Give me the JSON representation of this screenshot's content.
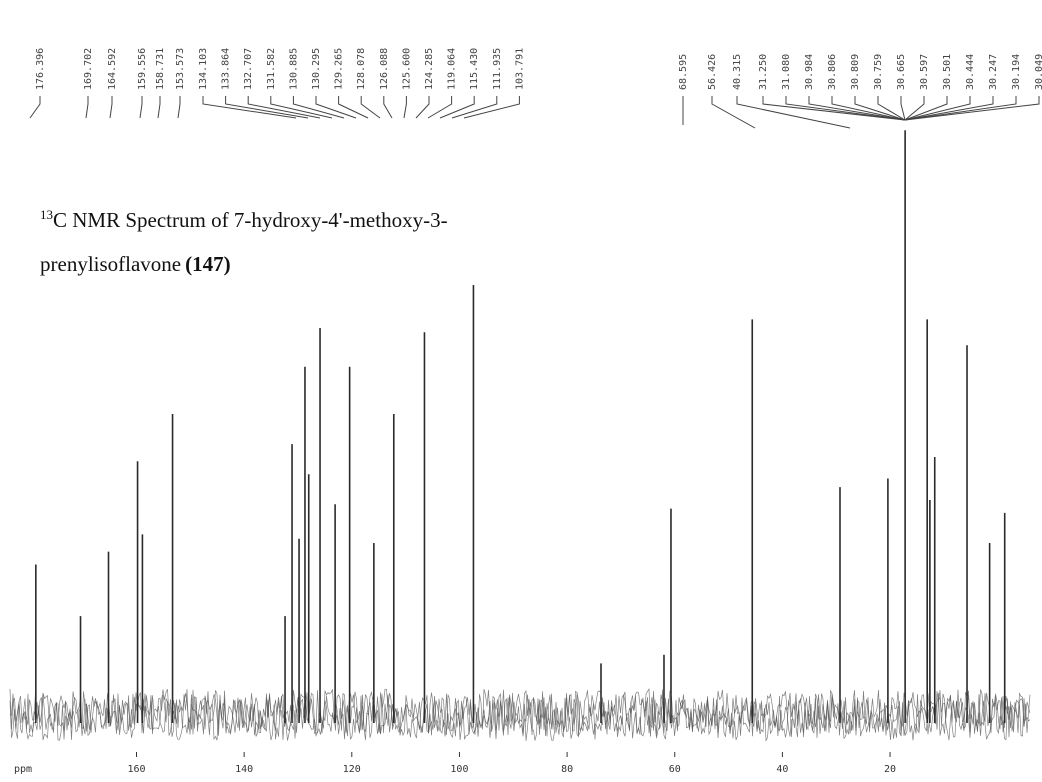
{
  "chart_data": {
    "type": "spectrum",
    "title_superscript": "13",
    "title": "C NMR Spectrum of 7-hydroxy-4'-methoxy-3-",
    "title_line2": "prenylisoflavone",
    "compound_number": "(147)",
    "x_label": "ppm",
    "xlim": [
      183.5,
      -6
    ],
    "xticks": [
      160,
      140,
      120,
      100,
      80,
      60,
      40,
      20
    ],
    "ylim": [
      0,
      140
    ],
    "color": "#2a2a2a",
    "x": [
      178.7,
      170.4,
      165.2,
      159.8,
      158.9,
      153.3,
      132.4,
      131.1,
      129.8,
      128.7,
      128.0,
      125.9,
      123.1,
      120.4,
      115.9,
      112.2,
      106.5,
      97.4,
      73.7,
      62.0,
      60.7,
      45.6,
      29.3,
      20.4,
      17.2,
      13.1,
      12.6,
      11.7,
      5.7,
      1.5,
      -1.3
    ],
    "values": [
      35,
      23,
      38,
      59,
      42,
      70,
      23,
      63,
      41,
      81,
      56,
      90,
      49,
      81,
      40,
      70,
      89,
      100,
      12,
      14,
      48,
      92,
      53,
      55,
      136,
      92,
      50,
      60,
      86,
      40,
      47
    ],
    "peak_labels_left": [
      "176.396",
      "169.702",
      "164.592",
      "159.556",
      "158.731",
      "153.573",
      "134.103",
      "133.864",
      "132.707",
      "131.582",
      "130.885",
      "130.295",
      "129.265",
      "128.078",
      "126.088",
      "125.600",
      "124.285",
      "119.064",
      "115.430",
      "111.935",
      "103.791"
    ],
    "peak_labels_right": [
      "68.595",
      "56.426",
      "40.315",
      "31.250",
      "31.080",
      "30.984",
      "30.806",
      "30.809",
      "30.759",
      "30.665",
      "30.597",
      "30.501",
      "30.444",
      "30.247",
      "30.194",
      "30.049"
    ]
  }
}
